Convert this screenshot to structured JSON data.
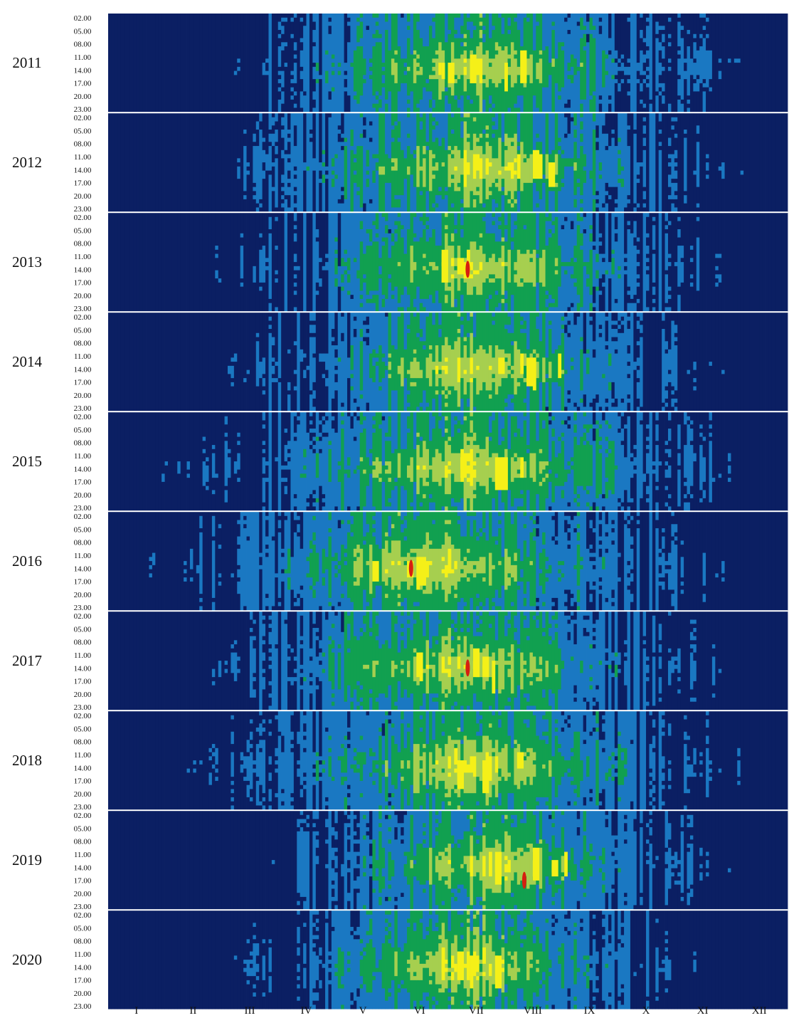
{
  "chart_data": {
    "type": "heatmap",
    "title": "",
    "xlabel": "",
    "ylabel": "",
    "legend": "none",
    "grid": false,
    "years": [
      "2011",
      "2012",
      "2013",
      "2014",
      "2015",
      "2016",
      "2017",
      "2018",
      "2019",
      "2020"
    ],
    "hour_ticks": [
      "02.00",
      "05.00",
      "08.00",
      "11.00",
      "14.00",
      "17.00",
      "20.00",
      "23.00"
    ],
    "months": [
      "I",
      "II",
      "III",
      "IV",
      "V",
      "VI",
      "VII",
      "VIII",
      "IX",
      "X",
      "XI",
      "XII"
    ],
    "value_levels": 6,
    "colors": [
      "#0b1f63",
      "#1a78c2",
      "#11a050",
      "#a6cf4f",
      "#f5f018",
      "#d61f10"
    ],
    "peak_season": {
      "2011": {
        "start_day": 88,
        "end_day": 304,
        "center_day": 198,
        "hot_day": 200
      },
      "2012": {
        "start_day": 80,
        "end_day": 300,
        "center_day": 196,
        "hot_day": 215
      },
      "2013": {
        "start_day": 74,
        "end_day": 290,
        "center_day": 196,
        "hot_day": 200
      },
      "2014": {
        "start_day": 82,
        "end_day": 288,
        "center_day": 194,
        "hot_day": 220
      },
      "2015": {
        "start_day": 60,
        "end_day": 300,
        "center_day": 190,
        "hot_day": 210
      },
      "2016": {
        "start_day": 52,
        "end_day": 290,
        "center_day": 175,
        "hot_day": 160
      },
      "2017": {
        "start_day": 70,
        "end_day": 290,
        "center_day": 190,
        "hot_day": 185
      },
      "2018": {
        "start_day": 60,
        "end_day": 284,
        "center_day": 196,
        "hot_day": 195
      },
      "2019": {
        "start_day": 100,
        "end_day": 290,
        "center_day": 205,
        "hot_day": 225
      },
      "2020": {
        "start_day": 85,
        "end_day": 285,
        "center_day": 190,
        "hot_day": 195
      }
    },
    "max_red_spots": [
      {
        "year": "2013",
        "month": "VII",
        "hour": "14.00"
      },
      {
        "year": "2016",
        "month": "VI",
        "hour": "14.00"
      },
      {
        "year": "2017",
        "month": "VII",
        "hour": "14.00"
      },
      {
        "year": "2019",
        "month": "VIII",
        "hour": "17.00"
      }
    ]
  }
}
